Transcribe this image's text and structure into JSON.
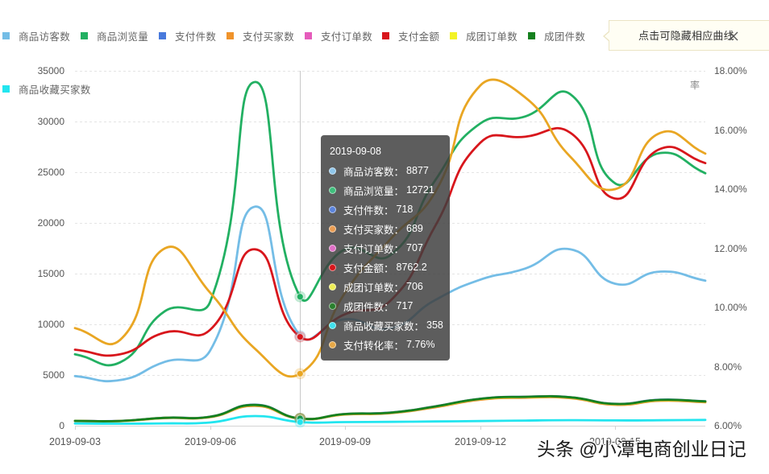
{
  "legend": {
    "items": [
      {
        "label": "商品访客数",
        "color": "#74bde6"
      },
      {
        "label": "商品浏览量",
        "color": "#22b062"
      },
      {
        "label": "支付件数",
        "color": "#4879dc"
      },
      {
        "label": "支付买家数",
        "color": "#f0932b"
      },
      {
        "label": "支付订单数",
        "color": "#e55cbb"
      },
      {
        "label": "支付金额",
        "color": "#d8161c"
      },
      {
        "label": "成团订单数",
        "color": "#f3f326"
      },
      {
        "label": "成团件数",
        "color": "#15801e"
      },
      {
        "label": "商品收藏买家数",
        "color": "#22e5ef"
      }
    ]
  },
  "hint": {
    "text": "点击可隐藏相应曲线",
    "close_icon": "close-icon"
  },
  "tooltip": {
    "title": "2019-09-08",
    "rows": [
      {
        "label": "商品访客数：",
        "value": "8877",
        "color": "#8fc6ea"
      },
      {
        "label": "商品浏览量：",
        "value": "12721",
        "color": "#3fbf7c"
      },
      {
        "label": "支付件数：",
        "value": "718",
        "color": "#5b84dc"
      },
      {
        "label": "支付买家数：",
        "value": "689",
        "color": "#eb9d52"
      },
      {
        "label": "支付订单数：",
        "value": "707",
        "color": "#e06fc6"
      },
      {
        "label": "支付金额：",
        "value": "8762.2",
        "color": "#d8161c"
      },
      {
        "label": "成团订单数：",
        "value": "706",
        "color": "#eded55"
      },
      {
        "label": "成团件数：",
        "value": "717",
        "color": "#2a7f2e"
      },
      {
        "label": "商品收藏买家数：",
        "value": "358",
        "color": "#3fe0ee"
      },
      {
        "label": "支付转化率：",
        "value": "7.76%",
        "color": "#e6a847"
      }
    ]
  },
  "watermark": "头条 @小潭电商创业日记",
  "chart_data": {
    "type": "line",
    "title": "",
    "smooth": true,
    "grid": true,
    "legend_position": "top",
    "x": [
      "2019-09-03",
      "2019-09-04",
      "2019-09-05",
      "2019-09-06",
      "2019-09-07",
      "2019-09-08",
      "2019-09-09",
      "2019-09-10",
      "2019-09-11",
      "2019-09-12",
      "2019-09-13",
      "2019-09-14",
      "2019-09-15",
      "2019-09-16",
      "2019-09-17"
    ],
    "x_tick_labels": [
      "2019-09-03",
      "2019-09-06",
      "2019-09-09",
      "2019-09-12",
      "2019-09-15"
    ],
    "xlabel": "",
    "left_axis": {
      "min": 0,
      "max": 35000,
      "ticks": [
        0,
        5000,
        10000,
        15000,
        20000,
        25000,
        30000,
        35000
      ],
      "tick_labels": [
        "0",
        "5000",
        "10000",
        "15000",
        "20000",
        "25000",
        "30000",
        "35000"
      ]
    },
    "right_axis": {
      "name": "率",
      "min": 6,
      "max": 18,
      "ticks": [
        6,
        8,
        10,
        12,
        14,
        16,
        18
      ],
      "tick_labels": [
        "6.00%",
        "8.00%",
        "10.00%",
        "12.00%",
        "14.00%",
        "16.00%",
        "18.00%"
      ]
    },
    "series": [
      {
        "name": "商品访客数",
        "axis": "left",
        "color": "#74bde6",
        "values": [
          4900,
          4500,
          6300,
          7400,
          21600,
          8877,
          10500,
          9600,
          12400,
          14400,
          15500,
          17400,
          14000,
          15200,
          14300
        ]
      },
      {
        "name": "商品浏览量",
        "axis": "left",
        "color": "#22b062",
        "values": [
          7050,
          6250,
          11300,
          12200,
          33900,
          12721,
          17400,
          16800,
          24200,
          29800,
          30500,
          32700,
          23900,
          26900,
          24900
        ]
      },
      {
        "name": "支付件数",
        "axis": "left",
        "color": "#4879dc",
        "values": [
          485,
          475,
          790,
          890,
          2070,
          718,
          1160,
          1290,
          1910,
          2660,
          2860,
          2810,
          2160,
          2560,
          2410
        ]
      },
      {
        "name": "支付买家数",
        "axis": "left",
        "color": "#f0932b",
        "values": [
          460,
          450,
          750,
          850,
          1950,
          689,
          1100,
          1230,
          1820,
          2560,
          2760,
          2720,
          2060,
          2460,
          2310
        ]
      },
      {
        "name": "支付订单数",
        "axis": "left",
        "color": "#e55cbb",
        "values": [
          478,
          465,
          775,
          875,
          2030,
          707,
          1140,
          1270,
          1880,
          2630,
          2830,
          2780,
          2130,
          2530,
          2380
        ]
      },
      {
        "name": "支付金额",
        "axis": "left",
        "color": "#d8161c",
        "values": [
          7500,
          7050,
          9200,
          9450,
          17400,
          8762.2,
          11000,
          12300,
          19700,
          27900,
          28500,
          28900,
          22400,
          27300,
          25900
        ]
      },
      {
        "name": "成团订单数",
        "axis": "left",
        "color": "#f3f326",
        "values": [
          477,
          464,
          774,
          874,
          2025,
          706,
          1138,
          1268,
          1878,
          2625,
          2825,
          2775,
          2125,
          2525,
          2375
        ]
      },
      {
        "name": "成团件数",
        "axis": "left",
        "color": "#15801e",
        "values": [
          480,
          470,
          780,
          880,
          2050,
          717,
          1150,
          1280,
          1900,
          2650,
          2850,
          2800,
          2150,
          2550,
          2400
        ]
      },
      {
        "name": "商品收藏买家数",
        "axis": "left",
        "color": "#22e5ef",
        "values": [
          220,
          200,
          230,
          320,
          950,
          358,
          360,
          380,
          420,
          460,
          510,
          550,
          520,
          540,
          570
        ]
      },
      {
        "name": "支付转化率",
        "axis": "right",
        "color": "#e9a623",
        "values": [
          9.3,
          8.9,
          12.0,
          10.5,
          8.6,
          7.76,
          10.5,
          12.3,
          13.9,
          17.5,
          17.1,
          15.1,
          14.0,
          15.9,
          15.2
        ]
      }
    ]
  }
}
